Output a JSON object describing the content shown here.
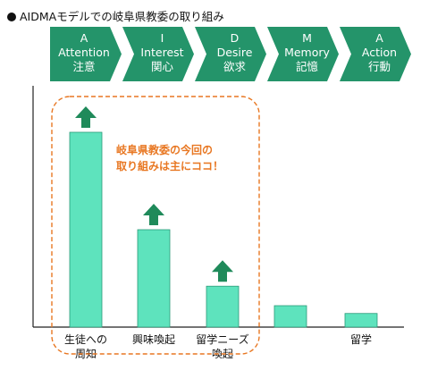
{
  "title": "AIDMAモデルでの岐阜県教委の取り組み",
  "colors": {
    "chevron": "#24946a",
    "bar": "#5ee3bd",
    "bar_stroke": "#2a9a78",
    "arrow": "#1f8a5a",
    "highlight": "#e87722",
    "axis": "#222222"
  },
  "stages": [
    {
      "letter": "A",
      "name": "Attention",
      "ja": "注意"
    },
    {
      "letter": "I",
      "name": "Interest",
      "ja": "関心"
    },
    {
      "letter": "D",
      "name": "Desire",
      "ja": "欲求"
    },
    {
      "letter": "M",
      "name": "Memory",
      "ja": "記憶"
    },
    {
      "letter": "A",
      "name": "Action",
      "ja": "行動"
    }
  ],
  "chart_data": {
    "type": "bar",
    "categories": [
      [
        "生徒への",
        "周知"
      ],
      [
        "興味喚起"
      ],
      [
        "留学ニーズ",
        "喚起"
      ],
      [
        ""
      ],
      [
        "留学"
      ]
    ],
    "values": [
      100,
      50,
      21,
      11,
      7
    ],
    "highlighted": [
      true,
      true,
      true,
      false,
      false
    ],
    "ylim": [
      0,
      100
    ],
    "annotation": [
      "岐阜県教委の今回の",
      "取り組みは主にココ！"
    ]
  }
}
